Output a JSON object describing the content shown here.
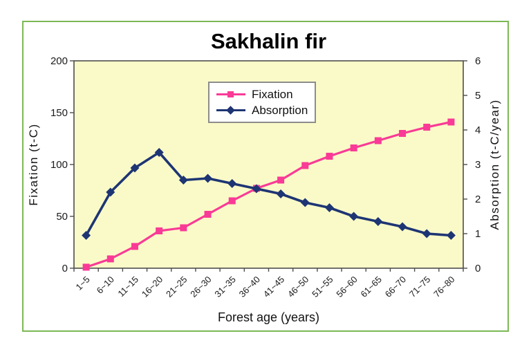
{
  "frame": {
    "border_color": "#7cb854"
  },
  "chart_data": {
    "type": "line",
    "title": "Sakhalin fir",
    "xlabel": "Forest age (years)",
    "left_axis": {
      "label": "Fixation (t-C)",
      "min": 0,
      "max": 200,
      "ticks": [
        0,
        50,
        100,
        150,
        200
      ]
    },
    "right_axis": {
      "label": "Absorption  (t-C/year)",
      "min": 0,
      "max": 6,
      "ticks": [
        0,
        1,
        2,
        3,
        4,
        5,
        6
      ]
    },
    "categories": [
      "1~5",
      "6~10",
      "11~15",
      "16~20",
      "21~25",
      "26~30",
      "31~35",
      "36~40",
      "41~45",
      "46~50",
      "51~55",
      "56~60",
      "61~65",
      "66~70",
      "71~75",
      "76~80"
    ],
    "series": [
      {
        "name": "Fixation",
        "axis": "left",
        "color": "#f93a96",
        "marker": "square",
        "values": [
          1,
          9,
          21,
          36,
          39,
          52,
          65,
          77,
          85,
          99,
          108,
          116,
          123,
          130,
          136,
          141
        ]
      },
      {
        "name": "Absorption",
        "axis": "right",
        "color": "#1e3574",
        "marker": "diamond",
        "values": [
          0.95,
          2.2,
          2.9,
          3.35,
          2.55,
          2.6,
          2.45,
          2.3,
          2.15,
          1.9,
          1.75,
          1.5,
          1.35,
          1.2,
          1.0,
          0.95
        ]
      }
    ],
    "plot_bg": "#fafac8",
    "grid": false,
    "legend_position": "top-center",
    "axis_color": "#4d4d4d"
  }
}
